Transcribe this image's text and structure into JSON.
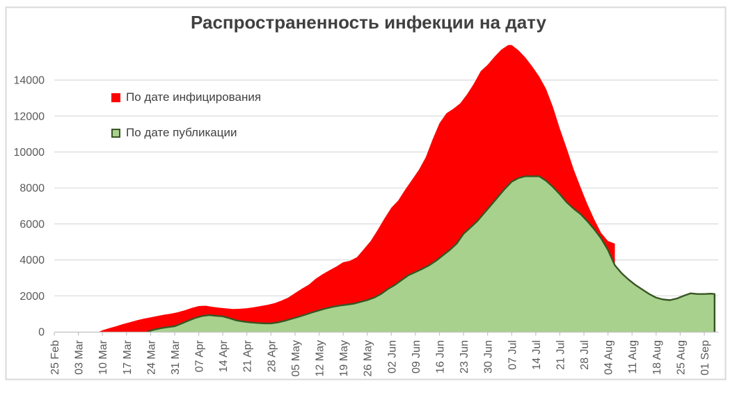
{
  "chart_data": {
    "type": "area",
    "title": "Распространенность инфекции на дату",
    "legend": [
      {
        "label": "По дате инфицирования",
        "color": "#FF0000",
        "border": "#FF0000"
      },
      {
        "label": "По дате публикации",
        "color": "#A9D18E",
        "border": "#375623"
      }
    ],
    "x_axis": {
      "unit": "days since first category (25 Feb)",
      "tick_interval_days": 7,
      "tick_labels": [
        "25 Feb",
        "03 Mar",
        "10 Mar",
        "17 Mar",
        "24 Mar",
        "31 Mar",
        "07 Apr",
        "14 Apr",
        "21 Apr",
        "28 Apr",
        "05 May",
        "12 May",
        "19 May",
        "26 May",
        "02 Jun",
        "09 Jun",
        "16 Jun",
        "23 Jun",
        "30 Jun",
        "07 Jul",
        "14 Jul",
        "21 Jul",
        "28 Jul",
        "04 Aug",
        "11 Aug",
        "18 Aug",
        "25 Aug",
        "01 Sep"
      ]
    },
    "y_axis": {
      "ticks": [
        0,
        2000,
        4000,
        6000,
        8000,
        10000,
        12000,
        14000
      ],
      "tick_labels": [
        "0",
        "2000",
        "4000",
        "6000",
        "8000",
        "10000",
        "12000",
        "14000"
      ],
      "max_plotted": 16000,
      "grid": true
    },
    "series": [
      {
        "name": "По дате инфицирования",
        "color": "#FF0000",
        "stroke": null,
        "points": [
          [
            13,
            0
          ],
          [
            14,
            80
          ],
          [
            16,
            200
          ],
          [
            18,
            310
          ],
          [
            20,
            430
          ],
          [
            22,
            530
          ],
          [
            24,
            640
          ],
          [
            26,
            730
          ],
          [
            28,
            800
          ],
          [
            30,
            880
          ],
          [
            32,
            950
          ],
          [
            34,
            1010
          ],
          [
            36,
            1090
          ],
          [
            38,
            1200
          ],
          [
            40,
            1330
          ],
          [
            42,
            1430
          ],
          [
            44,
            1450
          ],
          [
            46,
            1390
          ],
          [
            48,
            1340
          ],
          [
            50,
            1300
          ],
          [
            52,
            1270
          ],
          [
            54,
            1280
          ],
          [
            56,
            1310
          ],
          [
            58,
            1360
          ],
          [
            60,
            1430
          ],
          [
            62,
            1500
          ],
          [
            64,
            1590
          ],
          [
            66,
            1730
          ],
          [
            68,
            1900
          ],
          [
            70,
            2150
          ],
          [
            72,
            2400
          ],
          [
            74,
            2620
          ],
          [
            76,
            2950
          ],
          [
            78,
            3200
          ],
          [
            80,
            3420
          ],
          [
            82,
            3630
          ],
          [
            84,
            3870
          ],
          [
            86,
            3950
          ],
          [
            88,
            4150
          ],
          [
            90,
            4600
          ],
          [
            92,
            5050
          ],
          [
            94,
            5650
          ],
          [
            96,
            6300
          ],
          [
            98,
            6900
          ],
          [
            100,
            7300
          ],
          [
            102,
            7900
          ],
          [
            104,
            8450
          ],
          [
            106,
            9000
          ],
          [
            108,
            9700
          ],
          [
            110,
            10700
          ],
          [
            112,
            11600
          ],
          [
            114,
            12150
          ],
          [
            116,
            12400
          ],
          [
            118,
            12700
          ],
          [
            120,
            13200
          ],
          [
            122,
            13800
          ],
          [
            124,
            14500
          ],
          [
            126,
            14850
          ],
          [
            128,
            15300
          ],
          [
            130,
            15700
          ],
          [
            132,
            15950
          ],
          [
            133,
            15950
          ],
          [
            135,
            15650
          ],
          [
            137,
            15250
          ],
          [
            139,
            14750
          ],
          [
            141,
            14200
          ],
          [
            143,
            13500
          ],
          [
            145,
            12500
          ],
          [
            147,
            11300
          ],
          [
            149,
            10200
          ],
          [
            151,
            9050
          ],
          [
            153,
            8050
          ],
          [
            155,
            7100
          ],
          [
            157,
            6250
          ],
          [
            159,
            5500
          ],
          [
            161,
            5050
          ],
          [
            163,
            4900
          ]
        ]
      },
      {
        "name": "По дате публикации",
        "color": "#A9D18E",
        "stroke": "#375623",
        "points": [
          [
            27,
            0
          ],
          [
            29,
            120
          ],
          [
            31,
            200
          ],
          [
            33,
            260
          ],
          [
            35,
            310
          ],
          [
            37,
            460
          ],
          [
            39,
            620
          ],
          [
            41,
            770
          ],
          [
            43,
            880
          ],
          [
            45,
            930
          ],
          [
            47,
            890
          ],
          [
            49,
            860
          ],
          [
            51,
            750
          ],
          [
            53,
            630
          ],
          [
            55,
            570
          ],
          [
            57,
            520
          ],
          [
            59,
            490
          ],
          [
            61,
            470
          ],
          [
            63,
            470
          ],
          [
            65,
            520
          ],
          [
            67,
            610
          ],
          [
            69,
            720
          ],
          [
            71,
            830
          ],
          [
            73,
            950
          ],
          [
            75,
            1080
          ],
          [
            77,
            1190
          ],
          [
            79,
            1300
          ],
          [
            81,
            1390
          ],
          [
            83,
            1460
          ],
          [
            85,
            1510
          ],
          [
            87,
            1560
          ],
          [
            89,
            1660
          ],
          [
            91,
            1760
          ],
          [
            93,
            1900
          ],
          [
            95,
            2100
          ],
          [
            97,
            2380
          ],
          [
            99,
            2600
          ],
          [
            101,
            2880
          ],
          [
            103,
            3150
          ],
          [
            105,
            3320
          ],
          [
            107,
            3500
          ],
          [
            109,
            3700
          ],
          [
            111,
            3950
          ],
          [
            113,
            4250
          ],
          [
            115,
            4550
          ],
          [
            117,
            4900
          ],
          [
            119,
            5450
          ],
          [
            121,
            5800
          ],
          [
            123,
            6150
          ],
          [
            125,
            6600
          ],
          [
            127,
            7050
          ],
          [
            129,
            7500
          ],
          [
            131,
            7950
          ],
          [
            133,
            8350
          ],
          [
            135,
            8550
          ],
          [
            137,
            8650
          ],
          [
            139,
            8650
          ],
          [
            141,
            8650
          ],
          [
            143,
            8400
          ],
          [
            145,
            8050
          ],
          [
            147,
            7650
          ],
          [
            149,
            7200
          ],
          [
            151,
            6850
          ],
          [
            153,
            6550
          ],
          [
            155,
            6150
          ],
          [
            157,
            5700
          ],
          [
            159,
            5200
          ],
          [
            161,
            4550
          ],
          [
            163,
            3700
          ],
          [
            165,
            3250
          ],
          [
            167,
            2900
          ],
          [
            169,
            2600
          ],
          [
            171,
            2350
          ],
          [
            173,
            2100
          ],
          [
            175,
            1900
          ],
          [
            177,
            1800
          ],
          [
            179,
            1760
          ],
          [
            181,
            1850
          ],
          [
            183,
            2000
          ],
          [
            185,
            2140
          ],
          [
            187,
            2100
          ],
          [
            189,
            2100
          ],
          [
            191,
            2120
          ],
          [
            192,
            2100
          ]
        ]
      }
    ],
    "colors": {
      "gridline": "#D9D9D9",
      "axis": "#BFBFBF",
      "axis_label": "#595959",
      "title": "#404040",
      "frame": "#D9D9D9"
    }
  }
}
